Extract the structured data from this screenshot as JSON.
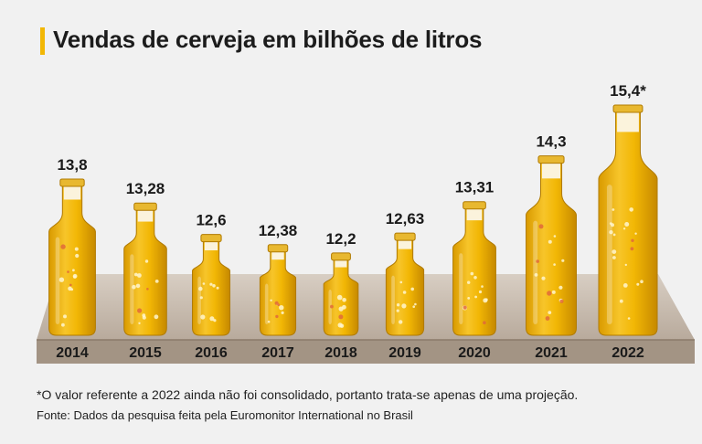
{
  "chart_data": {
    "type": "bar",
    "title": "Vendas de cerveja em bilhões de litros",
    "categories": [
      "2014",
      "2015",
      "2016",
      "2017",
      "2018",
      "2019",
      "2020",
      "2021",
      "2022"
    ],
    "values": [
      13.8,
      13.28,
      12.6,
      12.38,
      12.2,
      12.63,
      13.31,
      14.3,
      15.4
    ],
    "value_labels": [
      "13,8",
      "13,28",
      "12,6",
      "12,38",
      "12,2",
      "12,63",
      "13,31",
      "14,3",
      "15,4*"
    ],
    "xlabel": "",
    "ylabel": "",
    "grid": false,
    "colors": {
      "beer": "#f2b705",
      "bottle_dark": "#c48a00",
      "cap": "#e0b030",
      "shelf": "#cbbfb2",
      "shelf_front": "#9b8b7b"
    }
  },
  "footnote": "*O valor referente a 2022 ainda não foi consolidado, portanto trata-se apenas de uma projeção.",
  "source": "Fonte: Dados da pesquisa feita pela Euromonitor International no Brasil"
}
